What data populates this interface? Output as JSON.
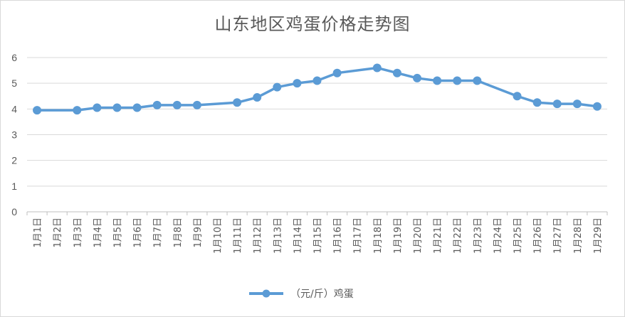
{
  "colors": {
    "series": "#5B9BD5",
    "grid": "#d9d9d9",
    "axis": "#bfbfbf",
    "text": "#595959"
  },
  "chart_data": {
    "type": "line",
    "title": "山东地区鸡蛋价格走势图",
    "xlabel": "",
    "ylabel": "",
    "ylim": [
      0,
      6
    ],
    "yticks": [
      0,
      1,
      2,
      3,
      4,
      5,
      6
    ],
    "grid": true,
    "legend_position": "bottom",
    "categories": [
      "1月1日",
      "1月2日",
      "1月3日",
      "1月4日",
      "1月5日",
      "1月6日",
      "1月7日",
      "1月8日",
      "1月9日",
      "1月10日",
      "1月11日",
      "1月12日",
      "1月13日",
      "1月14日",
      "1月15日",
      "1月16日",
      "1月17日",
      "1月18日",
      "1月19日",
      "1月20日",
      "1月21日",
      "1月22日",
      "1月23日",
      "1月24日",
      "1月25日",
      "1月26日",
      "1月27日",
      "1月28日",
      "1月29日"
    ],
    "series": [
      {
        "name": "（元/斤）鸡蛋",
        "values": [
          3.95,
          null,
          3.95,
          4.05,
          4.05,
          4.05,
          4.15,
          4.15,
          4.15,
          null,
          4.25,
          4.45,
          4.85,
          5.0,
          5.1,
          5.4,
          null,
          5.6,
          5.4,
          5.2,
          5.1,
          5.1,
          5.1,
          null,
          4.5,
          4.25,
          4.2,
          4.2,
          4.1
        ]
      }
    ]
  }
}
